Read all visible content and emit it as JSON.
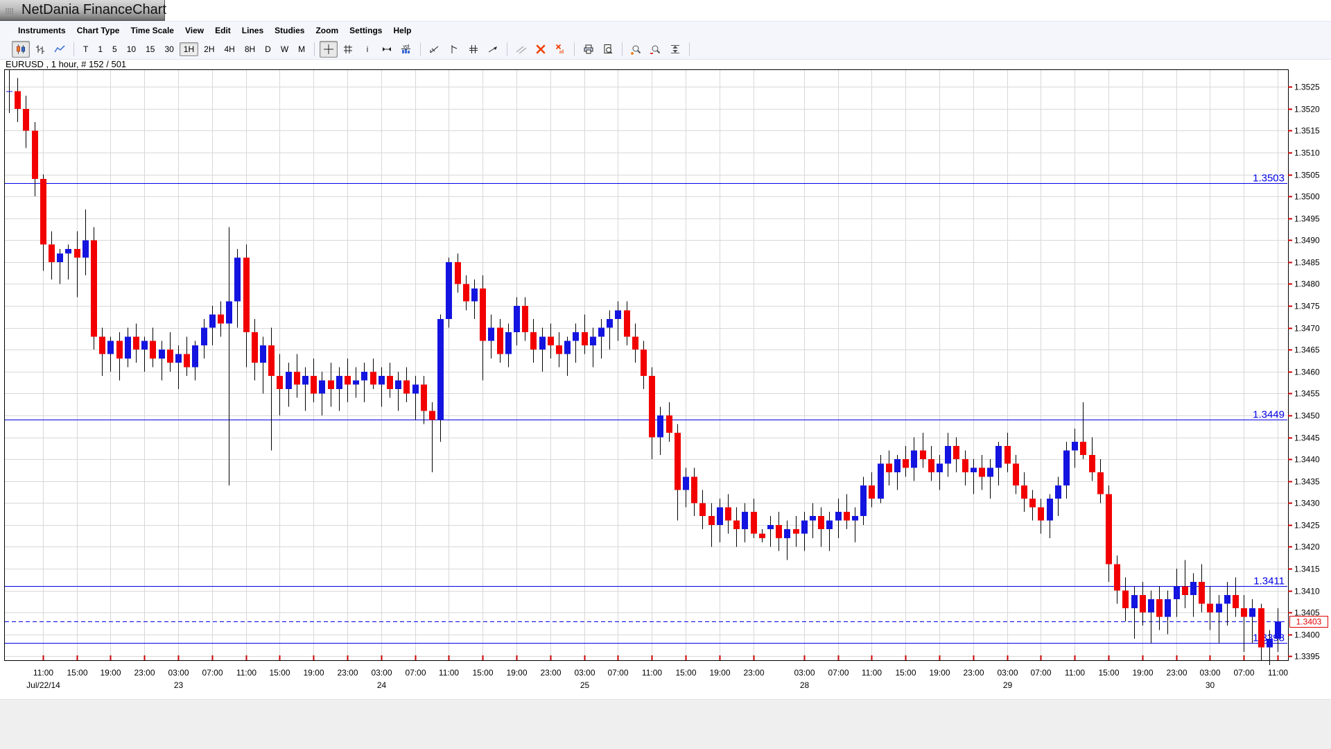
{
  "window": {
    "title": "NetDania FinanceChart"
  },
  "menu": {
    "items": [
      "Instruments",
      "Chart Type",
      "Time Scale",
      "View",
      "Edit",
      "Lines",
      "Studies",
      "Zoom",
      "Settings",
      "Help"
    ]
  },
  "toolbar": {
    "chart_type_buttons": [
      {
        "name": "candlestick-chart",
        "selected": true
      },
      {
        "name": "bar-chart",
        "selected": false
      },
      {
        "name": "line-chart",
        "selected": false
      }
    ],
    "timeframes": {
      "options": [
        "T",
        "1",
        "5",
        "10",
        "15",
        "30",
        "1H",
        "2H",
        "4H",
        "8H",
        "D",
        "W",
        "M"
      ],
      "selected": "1H"
    },
    "tool_buttons": [
      {
        "name": "crosshair",
        "selected": true
      },
      {
        "name": "grid"
      },
      {
        "name": "info"
      },
      {
        "name": "scroll-horizontal"
      },
      {
        "name": "volume"
      },
      {
        "divider": true
      },
      {
        "name": "trend-line"
      },
      {
        "name": "vertical-line"
      },
      {
        "name": "parallel-channel"
      },
      {
        "name": "ray-arrow"
      },
      {
        "divider": true
      },
      {
        "name": "angled-lines"
      },
      {
        "name": "delete-line"
      },
      {
        "name": "delete-all-lines"
      },
      {
        "divider": true
      },
      {
        "name": "print"
      },
      {
        "name": "print-preview"
      },
      {
        "divider": true
      },
      {
        "name": "zoom-in"
      },
      {
        "name": "zoom-out"
      },
      {
        "name": "fit-vertical"
      },
      {
        "divider": true
      }
    ]
  },
  "chart": {
    "header": "EURUSD , 1 hour, # 152 / 501",
    "colors": {
      "up": "#1414e0",
      "down": "#f20000",
      "wick": "#000000",
      "grid": "#d8d8d8",
      "line": "#0000e8",
      "tick": "#cc0000",
      "last_price": "#e00000",
      "axis_text": "#000000"
    },
    "chart_data": {
      "type": "candlestick",
      "symbol": "EURUSD",
      "timeframe": "1 hour",
      "bar_counter": "# 152 / 501",
      "y_axis": {
        "tick_min": 1.3395,
        "tick_max": 1.3525,
        "tick_step": 0.0005,
        "range_max": 1.3529,
        "range_min": 1.33941
      },
      "support_resistance_lines": [
        {
          "price": 1.3503,
          "label": "1.3503"
        },
        {
          "price": 1.3449,
          "label": "1.3449"
        },
        {
          "price": 1.3411,
          "label": "1.3411"
        },
        {
          "price": 1.3398,
          "label": "1.3398"
        }
      ],
      "last_price_line": {
        "price": 1.3403,
        "label": "1.3403",
        "style": "dashed"
      },
      "x_labels": [
        [
          4,
          "11:00",
          "Jul/22/14"
        ],
        [
          8,
          "15:00",
          ""
        ],
        [
          12,
          "19:00",
          ""
        ],
        [
          16,
          "23:00",
          ""
        ],
        [
          20,
          "03:00",
          "23"
        ],
        [
          24,
          "07:00",
          ""
        ],
        [
          28,
          "11:00",
          ""
        ],
        [
          32,
          "15:00",
          ""
        ],
        [
          36,
          "19:00",
          ""
        ],
        [
          40,
          "23:00",
          ""
        ],
        [
          44,
          "03:00",
          "24"
        ],
        [
          48,
          "07:00",
          ""
        ],
        [
          52,
          "11:00",
          ""
        ],
        [
          56,
          "15:00",
          ""
        ],
        [
          60,
          "19:00",
          ""
        ],
        [
          64,
          "23:00",
          ""
        ],
        [
          68,
          "03:00",
          "25"
        ],
        [
          72,
          "07:00",
          ""
        ],
        [
          76,
          "11:00",
          ""
        ],
        [
          80,
          "15:00",
          ""
        ],
        [
          84,
          "19:00",
          ""
        ],
        [
          88,
          "23:00",
          ""
        ],
        [
          94,
          "03:00",
          "28"
        ],
        [
          98,
          "07:00",
          ""
        ],
        [
          102,
          "11:00",
          ""
        ],
        [
          106,
          "15:00",
          ""
        ],
        [
          110,
          "19:00",
          ""
        ],
        [
          114,
          "23:00",
          ""
        ],
        [
          118,
          "03:00",
          "29"
        ],
        [
          122,
          "07:00",
          ""
        ],
        [
          126,
          "11:00",
          ""
        ],
        [
          130,
          "15:00",
          ""
        ],
        [
          134,
          "19:00",
          ""
        ],
        [
          138,
          "23:00",
          ""
        ],
        [
          142,
          "03:00",
          "30"
        ],
        [
          146,
          "07:00",
          ""
        ],
        [
          150,
          "11:00",
          ""
        ]
      ],
      "candles_ohlc_pips": [
        [
          13524,
          13529,
          13519,
          13524
        ],
        [
          13524,
          13527,
          13517,
          13520
        ],
        [
          13520,
          13523,
          13511,
          13515
        ],
        [
          13515,
          13517,
          13500,
          13504
        ],
        [
          13504,
          13505,
          13483,
          13489
        ],
        [
          13489,
          13492,
          13481,
          13485
        ],
        [
          13485,
          13488,
          13480,
          13487
        ],
        [
          13487,
          13489,
          13481,
          13488
        ],
        [
          13488,
          13492,
          13477,
          13486
        ],
        [
          13486,
          13497,
          13482,
          13490
        ],
        [
          13490,
          13493,
          13465,
          13468
        ],
        [
          13468,
          13470,
          13459,
          13464
        ],
        [
          13464,
          13468,
          13460,
          13467
        ],
        [
          13467,
          13469,
          13458,
          13463
        ],
        [
          13463,
          13470,
          13461,
          13468
        ],
        [
          13468,
          13471,
          13462,
          13465
        ],
        [
          13465,
          13468,
          13460,
          13467
        ],
        [
          13467,
          13470,
          13461,
          13463
        ],
        [
          13463,
          13467,
          13458,
          13465
        ],
        [
          13465,
          13469,
          13460,
          13462
        ],
        [
          13462,
          13466,
          13456,
          13464
        ],
        [
          13464,
          13468,
          13459,
          13461
        ],
        [
          13461,
          13467,
          13458,
          13466
        ],
        [
          13466,
          13472,
          13463,
          13470
        ],
        [
          13470,
          13475,
          13466,
          13473
        ],
        [
          13473,
          13476,
          13468,
          13471
        ],
        [
          13471,
          13493,
          13434,
          13476
        ],
        [
          13476,
          13488,
          13470,
          13486
        ],
        [
          13486,
          13489,
          13461,
          13469
        ],
        [
          13469,
          13472,
          13458,
          13462
        ],
        [
          13462,
          13468,
          13455,
          13466
        ],
        [
          13466,
          13470,
          13442,
          13459
        ],
        [
          13459,
          13464,
          13450,
          13456
        ],
        [
          13456,
          13462,
          13452,
          13460
        ],
        [
          13460,
          13464,
          13454,
          13457
        ],
        [
          13457,
          13461,
          13451,
          13459
        ],
        [
          13459,
          13463,
          13453,
          13455
        ],
        [
          13455,
          13460,
          13450,
          13458
        ],
        [
          13458,
          13462,
          13452,
          13456
        ],
        [
          13456,
          13461,
          13451,
          13459
        ],
        [
          13459,
          13463,
          13453,
          13457
        ],
        [
          13457,
          13461,
          13454,
          13458
        ],
        [
          13458,
          13462,
          13453,
          13460
        ],
        [
          13460,
          13463,
          13456,
          13457
        ],
        [
          13457,
          13461,
          13452,
          13459
        ],
        [
          13459,
          13462,
          13454,
          13456
        ],
        [
          13456,
          13460,
          13451,
          13458
        ],
        [
          13458,
          13461,
          13453,
          13455
        ],
        [
          13455,
          13459,
          13449,
          13457
        ],
        [
          13457,
          13459,
          13448,
          13451
        ],
        [
          13451,
          13453,
          13437,
          13449
        ],
        [
          13449,
          13473,
          13444,
          13472
        ],
        [
          13472,
          13486,
          13470,
          13485
        ],
        [
          13485,
          13487,
          13478,
          13480
        ],
        [
          13480,
          13482,
          13474,
          13476
        ],
        [
          13476,
          13481,
          13472,
          13479
        ],
        [
          13479,
          13482,
          13458,
          13467
        ],
        [
          13467,
          13473,
          13463,
          13470
        ],
        [
          13470,
          13472,
          13462,
          13464
        ],
        [
          13464,
          13471,
          13461,
          13469
        ],
        [
          13469,
          13477,
          13466,
          13475
        ],
        [
          13475,
          13477,
          13467,
          13469
        ],
        [
          13469,
          13472,
          13462,
          13465
        ],
        [
          13465,
          13470,
          13460,
          13468
        ],
        [
          13468,
          13471,
          13463,
          13466
        ],
        [
          13466,
          13469,
          13461,
          13464
        ],
        [
          13464,
          13468,
          13459,
          13467
        ],
        [
          13467,
          13471,
          13462,
          13469
        ],
        [
          13469,
          13473,
          13464,
          13466
        ],
        [
          13466,
          13470,
          13461,
          13468
        ],
        [
          13468,
          13472,
          13463,
          13470
        ],
        [
          13470,
          13474,
          13465,
          13472
        ],
        [
          13472,
          13476,
          13467,
          13474
        ],
        [
          13474,
          13476,
          13466,
          13468
        ],
        [
          13468,
          13471,
          13462,
          13465
        ],
        [
          13465,
          13467,
          13456,
          13459
        ],
        [
          13459,
          13461,
          13440,
          13445
        ],
        [
          13445,
          13452,
          13441,
          13450
        ],
        [
          13450,
          13453,
          13444,
          13446
        ],
        [
          13446,
          13448,
          13426,
          13433
        ],
        [
          13433,
          13438,
          13429,
          13436
        ],
        [
          13436,
          13438,
          13427,
          13430
        ],
        [
          13430,
          13433,
          13424,
          13427
        ],
        [
          13427,
          13430,
          13420,
          13425
        ],
        [
          13425,
          13431,
          13421,
          13429
        ],
        [
          13429,
          13432,
          13423,
          13426
        ],
        [
          13426,
          13429,
          13420,
          13424
        ],
        [
          13424,
          13430,
          13421,
          13428
        ],
        [
          13428,
          13431,
          13422,
          13423
        ],
        [
          13423,
          13424,
          13421,
          13422
        ],
        [
          13424,
          13427,
          13420,
          13425
        ],
        [
          13425,
          13428,
          13419,
          13422
        ],
        [
          13422,
          13426,
          13417,
          13424
        ],
        [
          13424,
          13427,
          13420,
          13423
        ],
        [
          13423,
          13428,
          13419,
          13426
        ],
        [
          13426,
          13430,
          13422,
          13427
        ],
        [
          13427,
          13429,
          13420,
          13424
        ],
        [
          13424,
          13428,
          13419,
          13426
        ],
        [
          13426,
          13431,
          13422,
          13428
        ],
        [
          13428,
          13432,
          13424,
          13426
        ],
        [
          13426,
          13429,
          13421,
          13427
        ],
        [
          13427,
          13436,
          13425,
          13434
        ],
        [
          13434,
          13437,
          13429,
          13431
        ],
        [
          13431,
          13441,
          13430,
          13439
        ],
        [
          13439,
          13442,
          13434,
          13437
        ],
        [
          13437,
          13441,
          13433,
          13440
        ],
        [
          13440,
          13443,
          13436,
          13438
        ],
        [
          13438,
          13445,
          13435,
          13442
        ],
        [
          13442,
          13446,
          13438,
          13440
        ],
        [
          13440,
          13443,
          13435,
          13437
        ],
        [
          13437,
          13441,
          13433,
          13439
        ],
        [
          13439,
          13446,
          13436,
          13443
        ],
        [
          13443,
          13445,
          13437,
          13440
        ],
        [
          13440,
          13442,
          13434,
          13437
        ],
        [
          13437,
          13440,
          13432,
          13438
        ],
        [
          13438,
          13441,
          13433,
          13436
        ],
        [
          13436,
          13440,
          13431,
          13438
        ],
        [
          13438,
          13444,
          13434,
          13443
        ],
        [
          13443,
          13446,
          13437,
          13439
        ],
        [
          13439,
          13441,
          13432,
          13434
        ],
        [
          13434,
          13437,
          13428,
          13431
        ],
        [
          13431,
          13433,
          13426,
          13429
        ],
        [
          13429,
          13431,
          13423,
          13426
        ],
        [
          13426,
          13432,
          13422,
          13431
        ],
        [
          13431,
          13436,
          13427,
          13434
        ],
        [
          13434,
          13444,
          13431,
          13442
        ],
        [
          13442,
          13447,
          13438,
          13444
        ],
        [
          13444,
          13453,
          13440,
          13441
        ],
        [
          13441,
          13445,
          13435,
          13437
        ],
        [
          13437,
          13440,
          13430,
          13432
        ],
        [
          13432,
          13434,
          13412,
          13416
        ],
        [
          13416,
          13418,
          13407,
          13410
        ],
        [
          13410,
          13413,
          13403,
          13406
        ],
        [
          13406,
          13411,
          13399,
          13409
        ],
        [
          13409,
          13412,
          13402,
          13405
        ],
        [
          13405,
          13410,
          13398,
          13408
        ],
        [
          13408,
          13411,
          13401,
          13404
        ],
        [
          13404,
          13410,
          13400,
          13408
        ],
        [
          13408,
          13415,
          13404,
          13411
        ],
        [
          13411,
          13417,
          13406,
          13409
        ],
        [
          13409,
          13414,
          13404,
          13412
        ],
        [
          13412,
          13416,
          13405,
          13407
        ],
        [
          13407,
          13411,
          13401,
          13405
        ],
        [
          13405,
          13409,
          13398,
          13407
        ],
        [
          13407,
          13412,
          13402,
          13409
        ],
        [
          13409,
          13413,
          13404,
          13406
        ],
        [
          13406,
          13409,
          13396,
          13404
        ],
        [
          13404,
          13408,
          13398,
          13406
        ],
        [
          13406,
          13407,
          13394,
          13397
        ],
        [
          13397,
          13401,
          13393,
          13399
        ],
        [
          13399,
          13406,
          13396,
          13403
        ]
      ]
    }
  }
}
